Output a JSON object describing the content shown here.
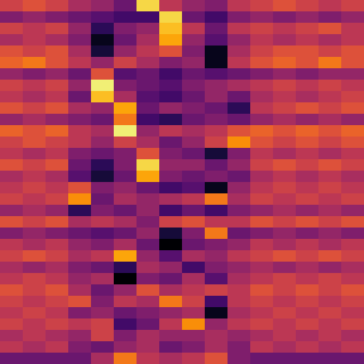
{
  "chart_data": {
    "type": "heatmap",
    "tick_labels": false,
    "zlim": [
      0,
      1
    ],
    "cells": [
      [
        0.55,
        0.6,
        0.55,
        0.45,
        0.4,
        0.3,
        0.9,
        0.5,
        0.4,
        0.35,
        0.5,
        0.55,
        0.6,
        0.55,
        0.5,
        0.55
      ],
      [
        0.35,
        0.4,
        0.35,
        0.3,
        0.25,
        0.2,
        0.2,
        0.9,
        0.3,
        0.2,
        0.35,
        0.4,
        0.35,
        0.4,
        0.35,
        0.4
      ],
      [
        0.55,
        0.5,
        0.55,
        0.4,
        0.15,
        0.35,
        0.4,
        0.85,
        0.5,
        0.3,
        0.5,
        0.55,
        0.5,
        0.55,
        0.6,
        0.5
      ],
      [
        0.45,
        0.5,
        0.45,
        0.35,
        0.05,
        0.3,
        0.45,
        0.8,
        0.4,
        0.25,
        0.4,
        0.5,
        0.45,
        0.5,
        0.45,
        0.5
      ],
      [
        0.6,
        0.55,
        0.6,
        0.45,
        0.1,
        0.4,
        0.5,
        0.6,
        0.35,
        0.05,
        0.45,
        0.55,
        0.6,
        0.6,
        0.55,
        0.6
      ],
      [
        0.65,
        0.7,
        0.6,
        0.5,
        0.4,
        0.55,
        0.45,
        0.35,
        0.4,
        0.05,
        0.5,
        0.6,
        0.65,
        0.6,
        0.7,
        0.6
      ],
      [
        0.4,
        0.35,
        0.4,
        0.3,
        0.6,
        0.25,
        0.3,
        0.2,
        0.3,
        0.25,
        0.3,
        0.35,
        0.4,
        0.35,
        0.4,
        0.4
      ],
      [
        0.55,
        0.5,
        0.55,
        0.4,
        0.95,
        0.35,
        0.3,
        0.25,
        0.35,
        0.4,
        0.45,
        0.5,
        0.55,
        0.5,
        0.55,
        0.5
      ],
      [
        0.5,
        0.45,
        0.5,
        0.3,
        0.85,
        0.45,
        0.25,
        0.2,
        0.3,
        0.4,
        0.3,
        0.45,
        0.5,
        0.45,
        0.5,
        0.55
      ],
      [
        0.6,
        0.55,
        0.6,
        0.45,
        0.4,
        0.8,
        0.3,
        0.4,
        0.35,
        0.3,
        0.15,
        0.5,
        0.55,
        0.6,
        0.55,
        0.6
      ],
      [
        0.4,
        0.45,
        0.4,
        0.35,
        0.3,
        0.7,
        0.2,
        0.15,
        0.3,
        0.35,
        0.3,
        0.4,
        0.45,
        0.4,
        0.45,
        0.4
      ],
      [
        0.65,
        0.6,
        0.65,
        0.5,
        0.45,
        0.95,
        0.4,
        0.5,
        0.45,
        0.5,
        0.6,
        0.65,
        0.6,
        0.65,
        0.6,
        0.65
      ],
      [
        0.55,
        0.6,
        0.55,
        0.5,
        0.4,
        0.55,
        0.45,
        0.3,
        0.4,
        0.55,
        0.75,
        0.6,
        0.55,
        0.6,
        0.55,
        0.6
      ],
      [
        0.5,
        0.45,
        0.5,
        0.35,
        0.3,
        0.35,
        0.6,
        0.35,
        0.3,
        0.1,
        0.35,
        0.5,
        0.45,
        0.5,
        0.45,
        0.5
      ],
      [
        0.6,
        0.55,
        0.6,
        0.3,
        0.15,
        0.35,
        0.9,
        0.4,
        0.4,
        0.3,
        0.4,
        0.55,
        0.6,
        0.55,
        0.6,
        0.55
      ],
      [
        0.45,
        0.5,
        0.45,
        0.25,
        0.1,
        0.3,
        0.8,
        0.35,
        0.3,
        0.35,
        0.3,
        0.45,
        0.5,
        0.45,
        0.5,
        0.45
      ],
      [
        0.5,
        0.55,
        0.5,
        0.6,
        0.35,
        0.4,
        0.3,
        0.2,
        0.25,
        0.05,
        0.4,
        0.5,
        0.55,
        0.5,
        0.55,
        0.5
      ],
      [
        0.55,
        0.5,
        0.55,
        0.75,
        0.3,
        0.45,
        0.4,
        0.45,
        0.5,
        0.7,
        0.45,
        0.55,
        0.5,
        0.55,
        0.5,
        0.55
      ],
      [
        0.4,
        0.45,
        0.4,
        0.15,
        0.35,
        0.3,
        0.4,
        0.2,
        0.3,
        0.2,
        0.35,
        0.4,
        0.45,
        0.4,
        0.45,
        0.4
      ],
      [
        0.6,
        0.55,
        0.6,
        0.45,
        0.5,
        0.45,
        0.35,
        0.55,
        0.6,
        0.5,
        0.5,
        0.6,
        0.55,
        0.6,
        0.55,
        0.6
      ],
      [
        0.35,
        0.4,
        0.35,
        0.3,
        0.25,
        0.3,
        0.4,
        0.1,
        0.35,
        0.7,
        0.3,
        0.35,
        0.4,
        0.35,
        0.4,
        0.35
      ],
      [
        0.5,
        0.45,
        0.5,
        0.4,
        0.35,
        0.45,
        0.3,
        0.0,
        0.3,
        0.35,
        0.4,
        0.5,
        0.45,
        0.5,
        0.45,
        0.5
      ],
      [
        0.55,
        0.6,
        0.55,
        0.45,
        0.5,
        0.8,
        0.4,
        0.25,
        0.45,
        0.4,
        0.5,
        0.55,
        0.6,
        0.55,
        0.6,
        0.55
      ],
      [
        0.45,
        0.4,
        0.45,
        0.35,
        0.3,
        0.15,
        0.45,
        0.4,
        0.2,
        0.35,
        0.4,
        0.45,
        0.4,
        0.45,
        0.4,
        0.45
      ],
      [
        0.5,
        0.55,
        0.5,
        0.4,
        0.45,
        0.0,
        0.35,
        0.3,
        0.45,
        0.25,
        0.45,
        0.5,
        0.55,
        0.5,
        0.55,
        0.5
      ],
      [
        0.6,
        0.55,
        0.6,
        0.45,
        0.3,
        0.4,
        0.6,
        0.45,
        0.5,
        0.55,
        0.5,
        0.6,
        0.55,
        0.6,
        0.55,
        0.6
      ],
      [
        0.55,
        0.5,
        0.55,
        0.6,
        0.35,
        0.5,
        0.45,
        0.7,
        0.55,
        0.2,
        0.5,
        0.55,
        0.5,
        0.55,
        0.5,
        0.55
      ],
      [
        0.5,
        0.55,
        0.5,
        0.35,
        0.4,
        0.3,
        0.35,
        0.4,
        0.45,
        0.05,
        0.45,
        0.5,
        0.55,
        0.5,
        0.55,
        0.5
      ],
      [
        0.55,
        0.5,
        0.55,
        0.5,
        0.55,
        0.2,
        0.3,
        0.5,
        0.75,
        0.4,
        0.5,
        0.55,
        0.5,
        0.55,
        0.5,
        0.55
      ],
      [
        0.45,
        0.5,
        0.45,
        0.4,
        0.55,
        0.35,
        0.45,
        0.4,
        0.4,
        0.45,
        0.4,
        0.45,
        0.5,
        0.45,
        0.5,
        0.45
      ],
      [
        0.5,
        0.45,
        0.5,
        0.35,
        0.3,
        0.4,
        0.45,
        0.3,
        0.35,
        0.45,
        0.35,
        0.5,
        0.45,
        0.5,
        0.45,
        0.5
      ],
      [
        0.3,
        0.3,
        0.3,
        0.3,
        0.45,
        0.7,
        0.5,
        0.45,
        0.5,
        0.6,
        0.35,
        0.3,
        0.3,
        0.3,
        0.3,
        0.3
      ]
    ]
  }
}
